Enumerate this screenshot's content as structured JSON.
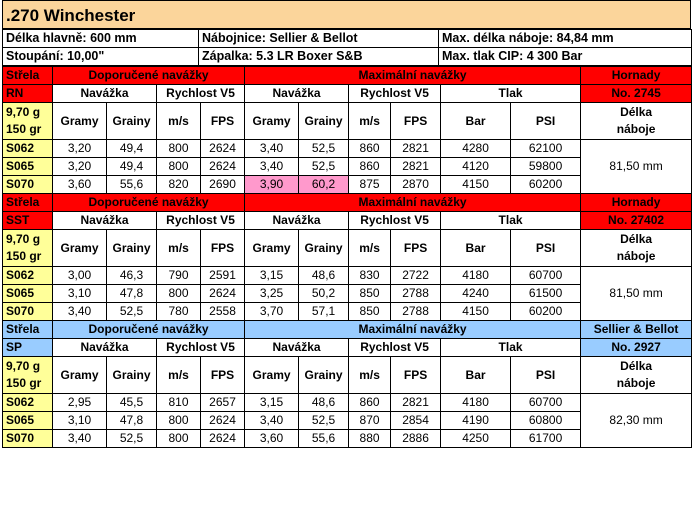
{
  "title": ".270 Winchester",
  "info": {
    "row1": [
      "Délka hlavně: 600 mm",
      "Nábojnice: Sellier & Bellot",
      "Max. délka náboje: 84,84 mm"
    ],
    "row2": [
      "Stoupání: 10,00\"",
      "Zápalka: 5.3 LR Boxer S&B",
      "Max. tlak CIP: 4 300 Bar"
    ]
  },
  "labels": {
    "strela": "Střela",
    "doporucene": "Doporučené navážky",
    "maximalni": "Maximální navážky",
    "navazka": "Navážka",
    "rychlost": "Rychlost V5",
    "tlak": "Tlak",
    "gramy": "Gramy",
    "grainy": "Grainy",
    "ms": "m/s",
    "fps": "FPS",
    "bar": "Bar",
    "psi": "PSI",
    "delka1": "Délka",
    "delka2": "náboje",
    "weight1": "9,70 g",
    "weight2": "150 gr"
  },
  "sections": [
    {
      "code": "RN",
      "maker": "Hornady",
      "no": "No. 2745",
      "length": "81,50 mm",
      "rows": [
        [
          "S062",
          "3,20",
          "49,4",
          "800",
          "2624",
          "3,40",
          "52,5",
          "860",
          "2821",
          "4280",
          "62100"
        ],
        [
          "S065",
          "3,20",
          "49,4",
          "800",
          "2624",
          "3,40",
          "52,5",
          "860",
          "2821",
          "4120",
          "59800"
        ],
        [
          "S070",
          "3,60",
          "55,6",
          "820",
          "2690",
          "3,90",
          "60,2",
          "875",
          "2870",
          "4150",
          "60200"
        ]
      ]
    },
    {
      "code": "SST",
      "maker": "Hornady",
      "no": "No. 27402",
      "length": "81,50 mm",
      "rows": [
        [
          "S062",
          "3,00",
          "46,3",
          "790",
          "2591",
          "3,15",
          "48,6",
          "830",
          "2722",
          "4180",
          "60700"
        ],
        [
          "S065",
          "3,10",
          "47,8",
          "800",
          "2624",
          "3,25",
          "50,2",
          "850",
          "2788",
          "4240",
          "61500"
        ],
        [
          "S070",
          "3,40",
          "52,5",
          "780",
          "2558",
          "3,70",
          "57,1",
          "850",
          "2788",
          "4150",
          "60200"
        ]
      ]
    },
    {
      "code": "SP",
      "maker": "Sellier & Bellot",
      "no": "No. 2927",
      "length": "82,30 mm",
      "rows": [
        [
          "S062",
          "2,95",
          "45,5",
          "810",
          "2657",
          "3,15",
          "48,6",
          "860",
          "2821",
          "4180",
          "60700"
        ],
        [
          "S065",
          "3,10",
          "47,8",
          "800",
          "2624",
          "3,40",
          "52,5",
          "870",
          "2854",
          "4190",
          "60800"
        ],
        [
          "S070",
          "3,40",
          "52,5",
          "800",
          "2624",
          "3,60",
          "55,6",
          "880",
          "2886",
          "4250",
          "61700"
        ]
      ]
    }
  ],
  "colors": {
    "red": "#ff0000",
    "blue": "#99ccff",
    "yellow": "#ffff99",
    "pink": "#ff99cc",
    "title": "#fbd59b"
  }
}
